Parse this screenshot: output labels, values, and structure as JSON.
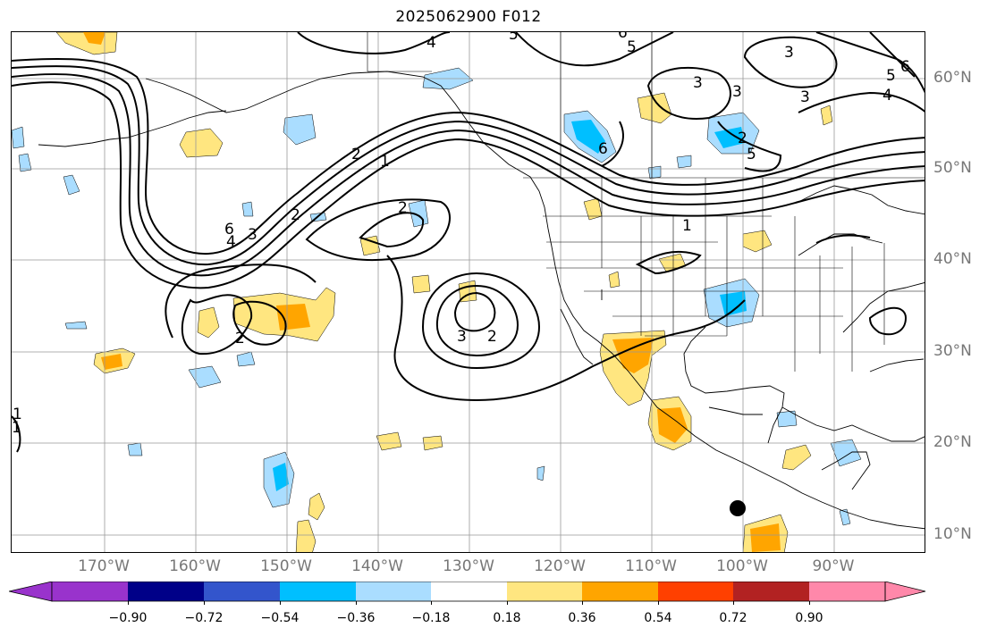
{
  "title": "2025062900 F012",
  "lon_labels": [
    "170°W",
    "160°W",
    "150°W",
    "140°W",
    "130°W",
    "120°W",
    "110°W",
    "100°W",
    "90°W"
  ],
  "lat_labels": [
    "60°N",
    "50°N",
    "40°N",
    "30°N",
    "20°N",
    "10°N"
  ],
  "colorbar": {
    "colors": [
      "#9933cc",
      "#000088",
      "#3355cc",
      "#00bfff",
      "#aaddff",
      "#ffffff",
      "#ffe680",
      "#ffa500",
      "#ff4000",
      "#b22222",
      "#ff88aa"
    ],
    "ticks": [
      "−0.90",
      "−0.72",
      "−0.54",
      "−0.36",
      "−0.18",
      "0.18",
      "0.36",
      "0.54",
      "0.72",
      "0.90"
    ]
  },
  "contour_labels": [
    "4",
    "5",
    "6",
    "5",
    "3",
    "3",
    "2",
    "3",
    "6",
    "5",
    "4",
    "6",
    "5",
    "3",
    "2",
    "1",
    "6",
    "4",
    "3",
    "2",
    "2",
    "1",
    "3",
    "2",
    "2",
    "1",
    "1"
  ]
}
